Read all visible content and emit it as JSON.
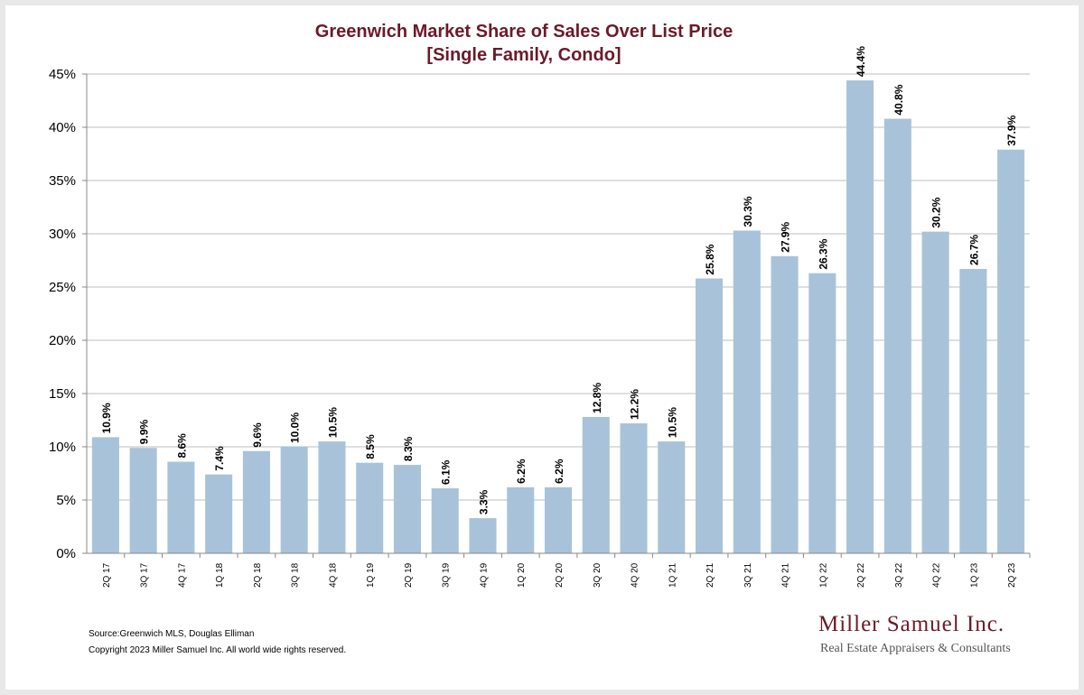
{
  "header": {
    "title_line1": "Greenwich Market Share of Sales Over List Price",
    "title_line2": "[Single Family, Condo]"
  },
  "footer": {
    "source": "Source:Greenwich MLS, Douglas Elliman",
    "copyright": "Copyright 2023 Miller Samuel Inc.  All world wide rights reserved."
  },
  "logo": {
    "name": "Miller Samuel Inc.",
    "tagline": "Real Estate Appraisers & Consultants"
  },
  "colors": {
    "bar": "#a8c3d9",
    "title": "#6b1a2a",
    "grid": "#bdbdbd"
  },
  "chart_data": {
    "type": "bar",
    "title": "Greenwich Market Share of Sales Over List Price [Single Family, Condo]",
    "xlabel": "",
    "ylabel": "",
    "ylim": [
      0,
      45
    ],
    "y_ticks": [
      0,
      5,
      10,
      15,
      20,
      25,
      30,
      35,
      40,
      45
    ],
    "y_tick_suffix": "%",
    "grid": true,
    "categories": [
      "2Q 17",
      "3Q 17",
      "4Q 17",
      "1Q 18",
      "2Q 18",
      "3Q 18",
      "4Q 18",
      "1Q 19",
      "2Q 19",
      "3Q 19",
      "4Q 19",
      "1Q 20",
      "2Q 20",
      "3Q 20",
      "4Q 20",
      "1Q 21",
      "2Q 21",
      "3Q 21",
      "4Q 21",
      "1Q 22",
      "2Q 22",
      "3Q 22",
      "4Q 22",
      "1Q 23",
      "2Q 23"
    ],
    "values": [
      10.9,
      9.9,
      8.6,
      7.4,
      9.6,
      10.0,
      10.5,
      8.5,
      8.3,
      6.1,
      3.3,
      6.2,
      6.2,
      12.8,
      12.2,
      10.5,
      25.8,
      30.3,
      27.9,
      26.3,
      44.4,
      40.8,
      30.2,
      26.7,
      37.9
    ],
    "data_labels": [
      "10.9%",
      "9.9%",
      "8.6%",
      "7.4%",
      "9.6%",
      "10.0%",
      "10.5%",
      "8.5%",
      "8.3%",
      "6.1%",
      "3.3%",
      "6.2%",
      "6.2%",
      "12.8%",
      "12.2%",
      "10.5%",
      "25.8%",
      "30.3%",
      "27.9%",
      "26.3%",
      "44.4%",
      "40.8%",
      "30.2%",
      "26.7%",
      "37.9%"
    ]
  }
}
